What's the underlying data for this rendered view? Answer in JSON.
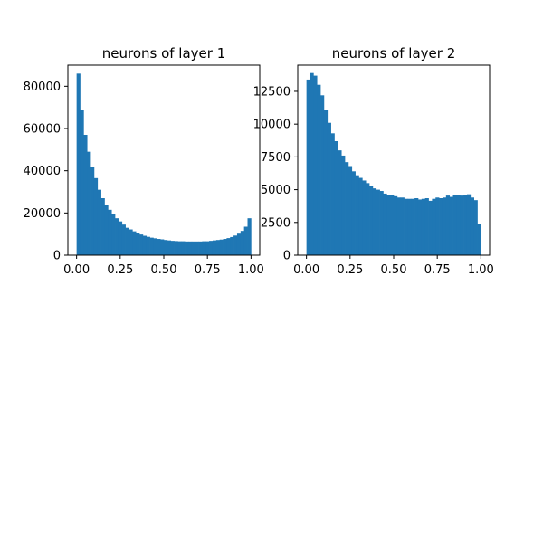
{
  "chart_data": [
    {
      "type": "bar",
      "title": "neurons of layer 1",
      "xlabel": "",
      "ylabel": "",
      "xlim": [
        -0.05,
        1.05
      ],
      "ylim": [
        0,
        90000
      ],
      "x_ticks": [
        0.0,
        0.25,
        0.5,
        0.75,
        1.0
      ],
      "x_tick_labels": [
        "0.00",
        "0.25",
        "0.50",
        "0.75",
        "1.00"
      ],
      "y_ticks": [
        0,
        20000,
        40000,
        60000,
        80000
      ],
      "y_tick_labels": [
        "0",
        "20000",
        "40000",
        "60000",
        "80000"
      ],
      "bin_start": 0.0,
      "bin_width": 0.02,
      "color": "#1f77b4",
      "values": [
        86000,
        69000,
        57000,
        49000,
        42000,
        36500,
        31000,
        27000,
        24000,
        21500,
        19500,
        17500,
        16000,
        14500,
        13000,
        12200,
        11300,
        10500,
        9800,
        9200,
        8700,
        8300,
        8000,
        7700,
        7500,
        7200,
        7000,
        6800,
        6700,
        6600,
        6600,
        6500,
        6500,
        6500,
        6500,
        6500,
        6600,
        6600,
        6800,
        7000,
        7200,
        7400,
        7700,
        8100,
        8600,
        9300,
        10200,
        11500,
        13500,
        17500
      ]
    },
    {
      "type": "bar",
      "title": "neurons of layer 2",
      "xlabel": "",
      "ylabel": "",
      "xlim": [
        -0.05,
        1.05
      ],
      "ylim": [
        0,
        14500
      ],
      "x_ticks": [
        0.0,
        0.25,
        0.5,
        0.75,
        1.0
      ],
      "x_tick_labels": [
        "0.00",
        "0.25",
        "0.50",
        "0.75",
        "1.00"
      ],
      "y_ticks": [
        0,
        2500,
        5000,
        7500,
        10000,
        12500
      ],
      "y_tick_labels": [
        "0",
        "2500",
        "5000",
        "7500",
        "10000",
        "12500"
      ],
      "bin_start": 0.0,
      "bin_width": 0.02,
      "color": "#1f77b4",
      "values": [
        13400,
        13900,
        13700,
        13000,
        12200,
        11100,
        10100,
        9300,
        8700,
        8000,
        7600,
        7100,
        6800,
        6400,
        6100,
        5900,
        5700,
        5500,
        5300,
        5100,
        5000,
        4900,
        4700,
        4600,
        4600,
        4500,
        4400,
        4400,
        4300,
        4300,
        4300,
        4350,
        4250,
        4300,
        4350,
        4150,
        4300,
        4400,
        4350,
        4400,
        4550,
        4450,
        4600,
        4600,
        4550,
        4600,
        4650,
        4400,
        4200,
        2400
      ]
    }
  ]
}
